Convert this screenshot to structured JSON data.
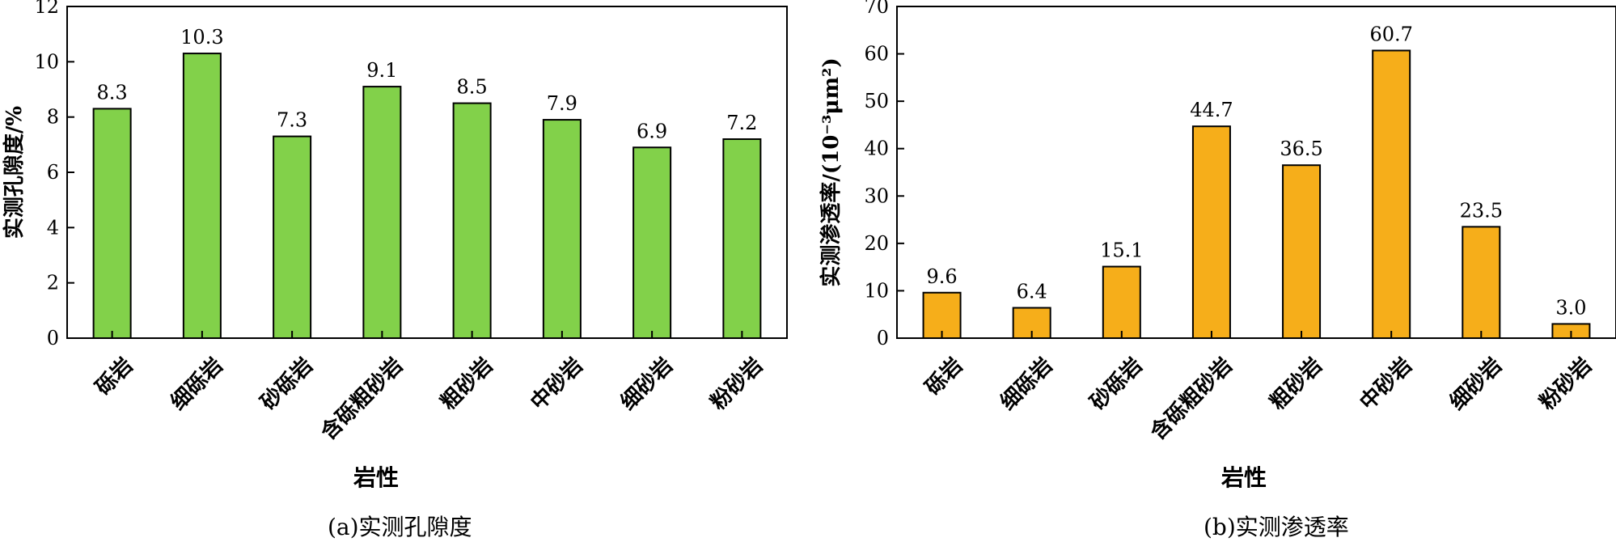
{
  "chart_data": [
    {
      "type": "bar",
      "caption": "(a)实测孔隙度",
      "xlabel": "岩性",
      "ylabel": "实测孔隙度/%",
      "categories": [
        "砾岩",
        "细砾岩",
        "砂砾岩",
        "含砾粗砂岩",
        "粗砂岩",
        "中砂岩",
        "细砂岩",
        "粉砂岩"
      ],
      "values": [
        8.3,
        10.3,
        7.3,
        9.1,
        8.5,
        7.9,
        6.9,
        7.2
      ],
      "data_labels": [
        "8.3",
        "10.3",
        "7.3",
        "9.1",
        "8.5",
        "7.9",
        "6.9",
        "7.2"
      ],
      "ylim": [
        0,
        12
      ],
      "yticks": [
        0,
        2,
        4,
        6,
        8,
        10,
        12
      ],
      "bar_color": "#82d14a",
      "grid": false,
      "legend": "none"
    },
    {
      "type": "bar",
      "caption": "(b)实测渗透率",
      "xlabel": "岩性",
      "ylabel": "实测渗透率/(10⁻³μm²)",
      "categories": [
        "砾岩",
        "细砾岩",
        "砂砾岩",
        "含砾粗砂岩",
        "粗砂岩",
        "中砂岩",
        "细砂岩",
        "粉砂岩"
      ],
      "values": [
        9.6,
        6.4,
        15.1,
        44.7,
        36.5,
        60.7,
        23.5,
        3.0
      ],
      "data_labels": [
        "9.6",
        "6.4",
        "15.1",
        "44.7",
        "36.5",
        "60.7",
        "23.5",
        "3.0"
      ],
      "ylim": [
        0,
        70
      ],
      "yticks": [
        0,
        10,
        20,
        30,
        40,
        50,
        60,
        70
      ],
      "bar_color": "#f6ae1a",
      "grid": false,
      "legend": "none"
    }
  ]
}
